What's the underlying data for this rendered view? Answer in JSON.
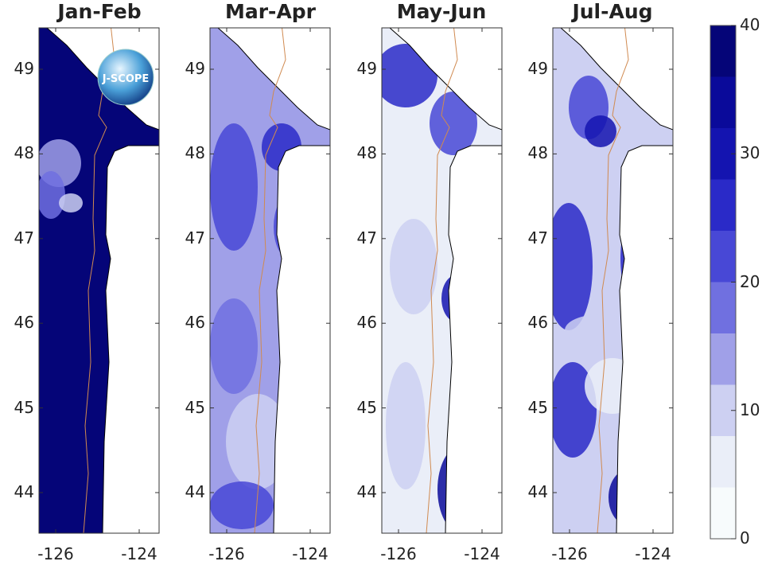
{
  "panels": [
    {
      "title": "Jan-Feb",
      "base_color": "#050578"
    },
    {
      "title": "Mar-Apr",
      "base_color": "#a0a0e8"
    },
    {
      "title": "May-Jun",
      "base_color": "#eaeef8"
    },
    {
      "title": "Jul-Aug",
      "base_color": "#cdd0f2"
    }
  ],
  "y_ticks": [
    "44",
    "45",
    "46",
    "47",
    "48",
    "49"
  ],
  "x_ticks": [
    "-126",
    "-124"
  ],
  "colorbar": {
    "ticks": [
      "0",
      "10",
      "20",
      "30",
      "40"
    ],
    "range": [
      0,
      40
    ],
    "levels": [
      0,
      4,
      8,
      12,
      16,
      20,
      24,
      28,
      32,
      36,
      40
    ],
    "colors": [
      "#f7fbfc",
      "#eaeef8",
      "#cdd0f2",
      "#a0a0e8",
      "#7070e0",
      "#4848d6",
      "#2a2ac8",
      "#1414b0",
      "#0a0a9a",
      "#050578"
    ]
  },
  "logo": {
    "text": "J-SCOPE"
  },
  "colors": {
    "isobath": "#d08a50",
    "coast": "#000000",
    "land": "#ffffff"
  }
}
